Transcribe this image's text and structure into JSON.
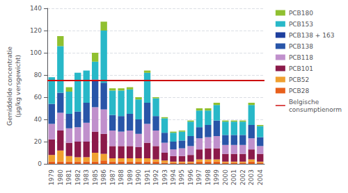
{
  "chart_data": {
    "type": "bar",
    "stacked": true,
    "ylabel": "Gemiddelde concentratie\n(µg/kg versgewicht)",
    "categories": [
      "1979",
      "1980",
      "1981",
      "1982",
      "1983",
      "1985",
      "1986",
      "1987",
      "1988",
      "1989",
      "1990",
      "1991",
      "1992",
      "1993",
      "1994",
      "1995",
      "1996",
      "1997",
      "1998",
      "1999",
      "2000",
      "2001",
      "2002",
      "2003",
      "2004"
    ],
    "series": [
      {
        "name": "PCB28",
        "color": "#e8601c",
        "values": [
          2,
          2,
          2,
          2,
          2,
          2,
          3,
          2,
          2,
          2,
          2,
          2,
          2,
          1,
          1,
          1,
          1,
          2,
          2,
          2,
          1,
          1,
          1,
          2,
          1
        ]
      },
      {
        "name": "PCB52",
        "color": "#f0a030",
        "values": [
          6,
          10,
          5,
          4,
          4,
          8,
          6,
          3,
          3,
          3,
          3,
          3,
          2,
          2,
          1,
          1,
          1,
          2,
          2,
          2,
          1,
          1,
          1,
          2,
          1
        ]
      },
      {
        "name": "PCB101",
        "color": "#8b1a4a",
        "values": [
          14,
          18,
          12,
          14,
          14,
          19,
          18,
          11,
          11,
          11,
          10,
          14,
          12,
          7,
          5,
          5,
          6,
          9,
          10,
          10,
          7,
          7,
          7,
          9,
          7
        ]
      },
      {
        "name": "PCB118",
        "color": "#c090cc",
        "values": [
          14,
          16,
          13,
          13,
          17,
          22,
          22,
          14,
          13,
          14,
          12,
          17,
          14,
          9,
          6,
          7,
          8,
          10,
          10,
          11,
          8,
          8,
          8,
          10,
          7
        ]
      },
      {
        "name": "PCB138",
        "color": "#2855a8",
        "values": [
          18,
          18,
          13,
          14,
          18,
          25,
          24,
          14,
          14,
          15,
          13,
          19,
          13,
          9,
          7,
          7,
          9,
          10,
          11,
          14,
          9,
          9,
          9,
          12,
          8
        ]
      },
      {
        "name": "PCB138 + 163",
        "color": "#1e3f9e",
        "values": [
          0,
          0,
          0,
          0,
          0,
          0,
          0,
          0,
          0,
          0,
          0,
          0,
          0,
          0,
          0,
          0,
          0,
          0,
          0,
          0,
          0,
          0,
          0,
          0,
          0
        ]
      },
      {
        "name": "PCB153",
        "color": "#28b8c8",
        "values": [
          24,
          42,
          20,
          35,
          29,
          16,
          47,
          22,
          23,
          22,
          18,
          27,
          16,
          13,
          8,
          8,
          13,
          15,
          13,
          14,
          12,
          12,
          12,
          18,
          10
        ]
      },
      {
        "name": "PCB180",
        "color": "#90c030",
        "values": [
          0,
          9,
          4,
          0,
          0,
          8,
          8,
          2,
          2,
          2,
          2,
          2,
          1,
          1,
          1,
          1,
          1,
          2,
          2,
          2,
          1,
          1,
          1,
          2,
          1
        ]
      }
    ],
    "reference_line": {
      "name": "Belgische\nconsumptienorm",
      "value": 75,
      "color": "#cc0000"
    },
    "ylim": [
      0,
      140
    ],
    "yticks": [
      0,
      20,
      40,
      60,
      80,
      100,
      120,
      140
    ],
    "grid": true,
    "legend": "right"
  }
}
